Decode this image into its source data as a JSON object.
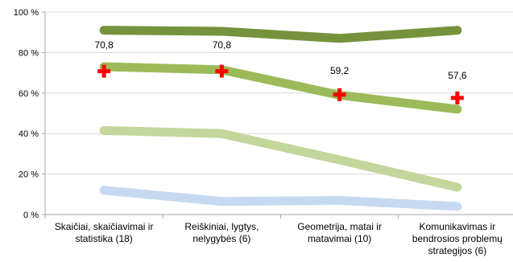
{
  "chart_data": {
    "type": "line",
    "title": "",
    "xlabel": "",
    "ylabel": "",
    "ylim": [
      0,
      100
    ],
    "y_ticks": [
      0,
      20,
      40,
      60,
      80,
      100
    ],
    "y_tick_labels": [
      "0 %",
      "20 %",
      "40 %",
      "60 %",
      "80 %",
      "100 %"
    ],
    "grid": "horizontal",
    "legend": "none",
    "categories": [
      [
        "Skaičiai, skaičiavimai ir",
        "statistika (18)"
      ],
      [
        "Reiškiniai, lygtys,",
        "nelygybės (6)"
      ],
      [
        "Geometrija, matai ir",
        "matavimai (10)"
      ],
      [
        "Komunikavimas ir",
        "bendrosios problemų",
        "strategijos (6)"
      ]
    ],
    "series": [
      {
        "color": "#76923c",
        "values": [
          91,
          90.5,
          87,
          91
        ]
      },
      {
        "color": "#9bbb59",
        "values": [
          73,
          71.5,
          59,
          52
        ]
      },
      {
        "color": "#c3d69b",
        "values": [
          41.5,
          40,
          27,
          13.5
        ]
      },
      {
        "color": "#c6d9f1",
        "values": [
          12,
          6.5,
          7,
          4
        ]
      }
    ],
    "markers": {
      "color": "#ff0000",
      "symbol": "plus",
      "values": [
        70.8,
        70.8,
        59.2,
        57.6
      ],
      "labels": [
        "70,8",
        "70,8",
        "59,2",
        "57,6"
      ]
    }
  }
}
